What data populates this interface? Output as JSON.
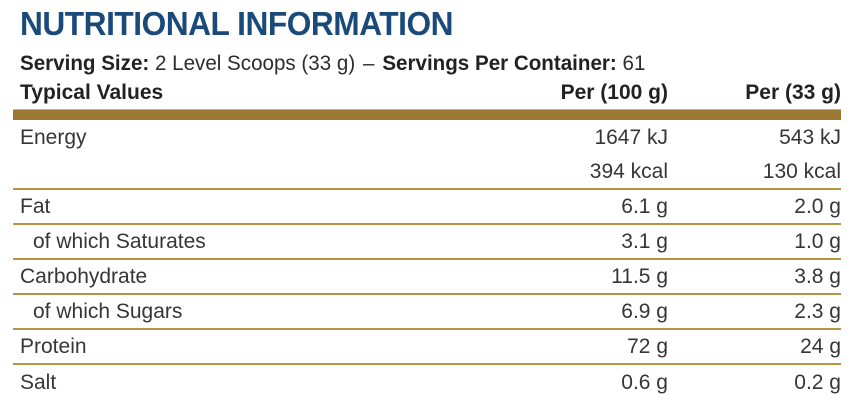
{
  "title": "NUTRITIONAL INFORMATION",
  "serving_info": {
    "serving_size_label": "Serving Size:",
    "serving_size_value": "2 Level Scoops (33 g)",
    "separator": "–",
    "servings_per_container_label": "Servings Per Container:",
    "servings_per_container_value": "61"
  },
  "table": {
    "headers": [
      "Typical Values",
      "Per (100 g)",
      "Per (33 g)"
    ],
    "rows": [
      {
        "label": "Energy",
        "per100": "1647 kJ",
        "per33": "543 kJ",
        "indent": false,
        "border": false
      },
      {
        "label": "",
        "per100": "394 kcal",
        "per33": "130 kcal",
        "indent": false,
        "border": true
      },
      {
        "label": "Fat",
        "per100": "6.1 g",
        "per33": "2.0 g",
        "indent": false,
        "border": true
      },
      {
        "label": "of which Saturates",
        "per100": "3.1 g",
        "per33": "1.0 g",
        "indent": true,
        "border": true
      },
      {
        "label": "Carbohydrate",
        "per100": "11.5 g",
        "per33": "3.8 g",
        "indent": false,
        "border": true
      },
      {
        "label": "of which Sugars",
        "per100": "6.9 g",
        "per33": "2.3 g",
        "indent": true,
        "border": true
      },
      {
        "label": "Protein",
        "per100": "72 g",
        "per33": "24 g",
        "indent": false,
        "border": true
      },
      {
        "label": "Salt",
        "per100": "0.6 g",
        "per33": "0.2 g",
        "indent": false,
        "border": false
      }
    ]
  },
  "colors": {
    "title_blue": "#1a4a7a",
    "gold_bar": "#9b7932",
    "gold_line": "#b59445",
    "text_dark": "#2d2d2d"
  }
}
